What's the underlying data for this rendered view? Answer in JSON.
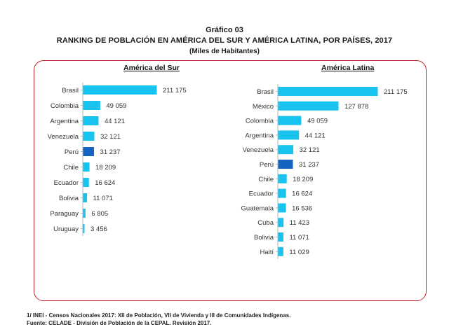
{
  "header": {
    "figure_label": "Gráfico 03",
    "title": "RANKING DE POBLACIÓN EN AMÉRICA DEL SUR Y AMÉRICA LATINA, POR PAÍSES, 2017",
    "units": "(Miles de Habitantes)"
  },
  "colors": {
    "bar": "#19c3f0",
    "highlight": "#1565c0",
    "frame": "#c0242c"
  },
  "chart_data": [
    {
      "type": "bar",
      "orientation": "horizontal",
      "title": "América del Sur",
      "categories": [
        "Brasil",
        "Colombia",
        "Argentina",
        "Venezuela",
        "Perú",
        "Chile",
        "Ecuador",
        "Bolivia",
        "Paraguay",
        "Uruguay"
      ],
      "values": [
        211175,
        49059,
        44121,
        32121,
        31237,
        18209,
        16624,
        11071,
        6805,
        3456
      ],
      "labels": [
        "211 175",
        "49 059",
        "44 121",
        "32 121",
        "31 237",
        "18 209",
        "16 624",
        "11 071",
        "6 805",
        "3 456"
      ],
      "highlight": "Perú",
      "xlim": [
        0,
        211175
      ]
    },
    {
      "type": "bar",
      "orientation": "horizontal",
      "title": "América Latina",
      "categories": [
        "Brasil",
        "México",
        "Colombia",
        "Argentina",
        "Venezuela",
        "Perú",
        "Chile",
        "Ecuador",
        "Guatemala",
        "Cuba",
        "Bolivia",
        "Haití"
      ],
      "values": [
        211175,
        127878,
        49059,
        44121,
        32121,
        31237,
        18209,
        16624,
        16536,
        11423,
        11071,
        11029
      ],
      "labels": [
        "211 175",
        "127 878",
        "49 059",
        "44 121",
        "32 121",
        "31 237",
        "18 209",
        "16 624",
        "16 536",
        "11 423",
        "11 071",
        "11 029"
      ],
      "highlight": "Perú",
      "xlim": [
        0,
        211175
      ]
    }
  ],
  "footnotes": {
    "note1": "1/ INEI - Censos Nacionales 2017: XII de Población, VII de Vivienda y III de Comunidades Indígenas.",
    "source": "Fuente: CELADE - División de Población de la CEPAL. Revisión 2017."
  }
}
